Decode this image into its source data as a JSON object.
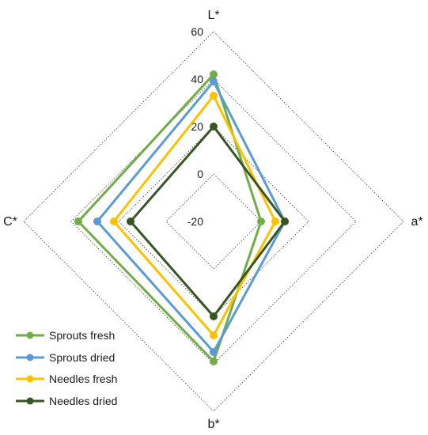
{
  "chart_data": {
    "type": "radar",
    "axes": [
      "L*",
      "a*",
      "b*",
      "C*"
    ],
    "rlim": [
      -20,
      60
    ],
    "ticks": [
      60,
      40,
      20,
      0,
      -20
    ],
    "tick_labels": [
      "60",
      "40",
      "20",
      "0",
      "-20"
    ],
    "grid": true,
    "legend_position": "bottom-left",
    "series": [
      {
        "name": "Sprouts fresh",
        "color": "#70ad47",
        "values": [
          42,
          0,
          39,
          37
        ]
      },
      {
        "name": "Sprouts dried",
        "color": "#5b9bd5",
        "values": [
          39,
          10,
          35,
          29
        ]
      },
      {
        "name": "Needles fresh",
        "color": "#ffc000",
        "values": [
          33,
          6,
          28,
          22
        ]
      },
      {
        "name": "Needles dried",
        "color": "#375623",
        "values": [
          20,
          10,
          20,
          15
        ]
      }
    ]
  }
}
